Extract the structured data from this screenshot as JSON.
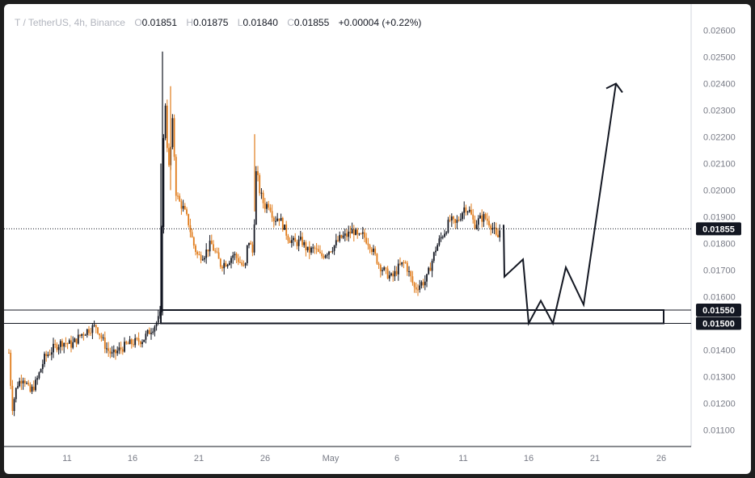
{
  "legend": {
    "symbol": "T / TetherUS, 4h, Binance",
    "o_label": "O",
    "o_value": "0.01851",
    "h_label": "H",
    "h_value": "0.01875",
    "l_label": "L",
    "l_value": "0.01840",
    "c_label": "C",
    "c_value": "0.01855",
    "change": "+0.00004 (+0.22%)"
  },
  "chart_data": {
    "type": "candlestick",
    "symbol": "T / TetherUS",
    "interval": "4h",
    "exchange": "Binance",
    "ylim": [
      0.0103,
      0.0266
    ],
    "y_ticks": [
      "0.02600",
      "0.02500",
      "0.02400",
      "0.02300",
      "0.02200",
      "0.02100",
      "0.02000",
      "0.01900",
      "0.01800",
      "0.01700",
      "0.01600",
      "0.01400",
      "0.01300",
      "0.01200",
      "0.01100"
    ],
    "x_ticks": [
      "11",
      "16",
      "21",
      "26",
      "May",
      "6",
      "11",
      "16",
      "21",
      "26"
    ],
    "current_price": "0.01855",
    "levels": [
      {
        "price": 0.0155,
        "label": "0.01550"
      },
      {
        "price": 0.015,
        "label": "0.01500"
      }
    ],
    "projection_path_prices": [
      0.0187,
      0.01675,
      0.0174,
      0.015,
      0.01585,
      0.015,
      0.0171,
      0.0157,
      0.024
    ],
    "price_path": [
      [
        0,
        0.0139
      ],
      [
        4,
        0.0118
      ],
      [
        10,
        0.0127
      ],
      [
        18,
        0.013
      ],
      [
        26,
        0.0124
      ],
      [
        34,
        0.0128
      ],
      [
        44,
        0.0137
      ],
      [
        56,
        0.0141
      ],
      [
        66,
        0.0143
      ],
      [
        78,
        0.0142
      ],
      [
        90,
        0.0146
      ],
      [
        100,
        0.0148
      ],
      [
        108,
        0.0149
      ],
      [
        114,
        0.0145
      ],
      [
        120,
        0.0141
      ],
      [
        128,
        0.0138
      ],
      [
        136,
        0.014
      ],
      [
        146,
        0.0142
      ],
      [
        156,
        0.0143
      ],
      [
        166,
        0.0144
      ],
      [
        174,
        0.0147
      ],
      [
        182,
        0.015
      ],
      [
        186,
        0.0152
      ],
      [
        188,
        0.0154
      ],
      [
        190,
        0.021
      ],
      [
        194,
        0.0235
      ],
      [
        197,
        0.0205
      ],
      [
        200,
        0.0215
      ],
      [
        203,
        0.0228
      ],
      [
        206,
        0.02
      ],
      [
        210,
        0.0196
      ],
      [
        216,
        0.0193
      ],
      [
        222,
        0.0188
      ],
      [
        228,
        0.018
      ],
      [
        234,
        0.0175
      ],
      [
        242,
        0.0176
      ],
      [
        250,
        0.018
      ],
      [
        256,
        0.0176
      ],
      [
        262,
        0.0172
      ],
      [
        270,
        0.0173
      ],
      [
        278,
        0.0176
      ],
      [
        286,
        0.0173
      ],
      [
        292,
        0.017
      ],
      [
        296,
        0.0182
      ],
      [
        302,
        0.0176
      ],
      [
        306,
        0.0208
      ],
      [
        310,
        0.02
      ],
      [
        316,
        0.0194
      ],
      [
        322,
        0.0195
      ],
      [
        328,
        0.0189
      ],
      [
        334,
        0.019
      ],
      [
        340,
        0.0186
      ],
      [
        346,
        0.0182
      ],
      [
        354,
        0.018
      ],
      [
        362,
        0.0181
      ],
      [
        370,
        0.0177
      ],
      [
        378,
        0.0178
      ],
      [
        386,
        0.0175
      ],
      [
        394,
        0.0177
      ],
      [
        402,
        0.0179
      ],
      [
        410,
        0.0182
      ],
      [
        418,
        0.0183
      ],
      [
        426,
        0.0185
      ],
      [
        432,
        0.0182
      ],
      [
        438,
        0.0183
      ],
      [
        446,
        0.018
      ],
      [
        452,
        0.0176
      ],
      [
        458,
        0.0172
      ],
      [
        466,
        0.0169
      ],
      [
        474,
        0.0167
      ],
      [
        482,
        0.0171
      ],
      [
        490,
        0.0173
      ],
      [
        496,
        0.0168
      ],
      [
        502,
        0.0163
      ],
      [
        510,
        0.0165
      ],
      [
        516,
        0.0166
      ],
      [
        522,
        0.0172
      ],
      [
        528,
        0.0178
      ],
      [
        534,
        0.0182
      ],
      [
        540,
        0.0185
      ],
      [
        546,
        0.0189
      ],
      [
        552,
        0.0187
      ],
      [
        558,
        0.019
      ],
      [
        564,
        0.0194
      ],
      [
        570,
        0.0192
      ],
      [
        576,
        0.0187
      ],
      [
        582,
        0.0189
      ],
      [
        588,
        0.019
      ],
      [
        594,
        0.0188
      ],
      [
        600,
        0.0185
      ],
      [
        604,
        0.0181
      ],
      [
        608,
        0.0186
      ]
    ]
  },
  "colors": {
    "up": "#131722",
    "down": "#e07b1a",
    "price_tag": "#131722",
    "background": "#ffffff",
    "axis_text": "#787b86"
  }
}
